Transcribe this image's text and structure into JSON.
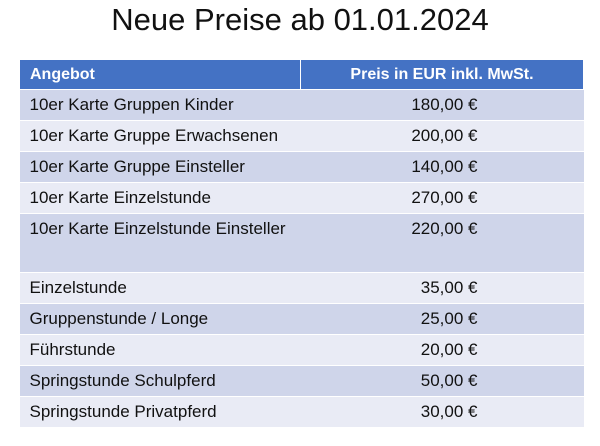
{
  "title": "Neue Preise ab 01.01.2024",
  "table": {
    "headers": [
      "Angebot",
      "Preis in EUR inkl. MwSt."
    ],
    "rows": [
      {
        "offer": "10er Karte Gruppen Kinder",
        "price": "180,00 €"
      },
      {
        "offer": "10er Karte Gruppe Erwachsenen",
        "price": "200,00 €"
      },
      {
        "offer": "10er Karte Gruppe Einsteller",
        "price": "140,00 €"
      },
      {
        "offer": "10er Karte Einzelstunde",
        "price": "270,00 €"
      },
      {
        "offer": "10er Karte Einzelstunde Einsteller",
        "price": "220,00 €"
      },
      {
        "offer": "Einzelstunde",
        "price": "35,00 €"
      },
      {
        "offer": "Gruppenstunde / Longe",
        "price": "25,00 €"
      },
      {
        "offer": "Führstunde",
        "price": "20,00 €"
      },
      {
        "offer": "Springstunde Schulpferd",
        "price": "50,00 €"
      },
      {
        "offer": "Springstunde Privatpferd",
        "price": "30,00 €"
      }
    ]
  },
  "colors": {
    "header_background": "#4472c4",
    "row_odd": "#cfd5ea",
    "row_even": "#e9ebf5"
  }
}
